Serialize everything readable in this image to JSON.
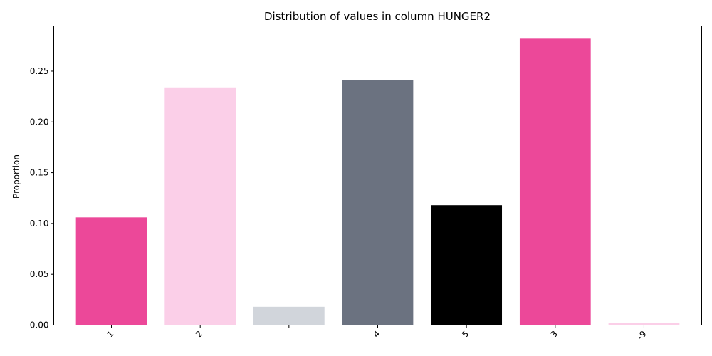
{
  "chart_data": {
    "type": "bar",
    "title": "Distribution of values in column HUNGER2",
    "xlabel": "",
    "ylabel": "Proportion",
    "categories": [
      "1",
      "2",
      "",
      "4",
      "5",
      "3",
      "-9"
    ],
    "values": [
      0.106,
      0.234,
      0.018,
      0.241,
      0.118,
      0.282,
      0.002
    ],
    "colors": [
      "#ec4899",
      "#fbcfe8",
      "#d1d5db",
      "#6b7280",
      "#000000",
      "#ec4899",
      "#fbcfe8"
    ],
    "ylim": [
      0,
      0.2945
    ],
    "yticks": [
      0.0,
      0.05,
      0.1,
      0.15,
      0.2,
      0.25
    ],
    "ytick_labels": [
      "0.00",
      "0.05",
      "0.10",
      "0.15",
      "0.20",
      "0.25"
    ],
    "grid": false,
    "legend": "none"
  }
}
